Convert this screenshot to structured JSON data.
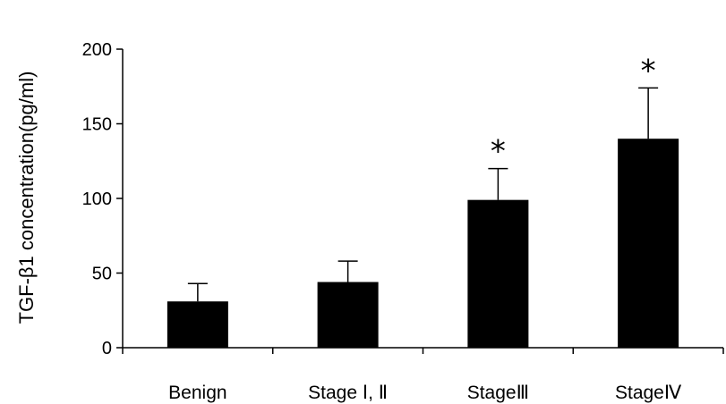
{
  "chart_data": {
    "type": "bar",
    "title": "",
    "xlabel": "",
    "ylabel": "TGF-β1 concentration(pg/ml)",
    "categories": [
      "Benign",
      "Stage Ⅰ, Ⅱ",
      "StageⅢ",
      "StageⅣ"
    ],
    "values": [
      31,
      44,
      99,
      140
    ],
    "error": [
      12,
      14,
      21,
      34
    ],
    "annotations": [
      "",
      "",
      "*",
      "*"
    ],
    "ylim": [
      0,
      200
    ],
    "yticks": [
      0,
      50,
      100,
      150,
      200
    ],
    "grid": false,
    "legend": "none",
    "colors": {
      "bar": "#000000",
      "axis": "#000000"
    }
  }
}
